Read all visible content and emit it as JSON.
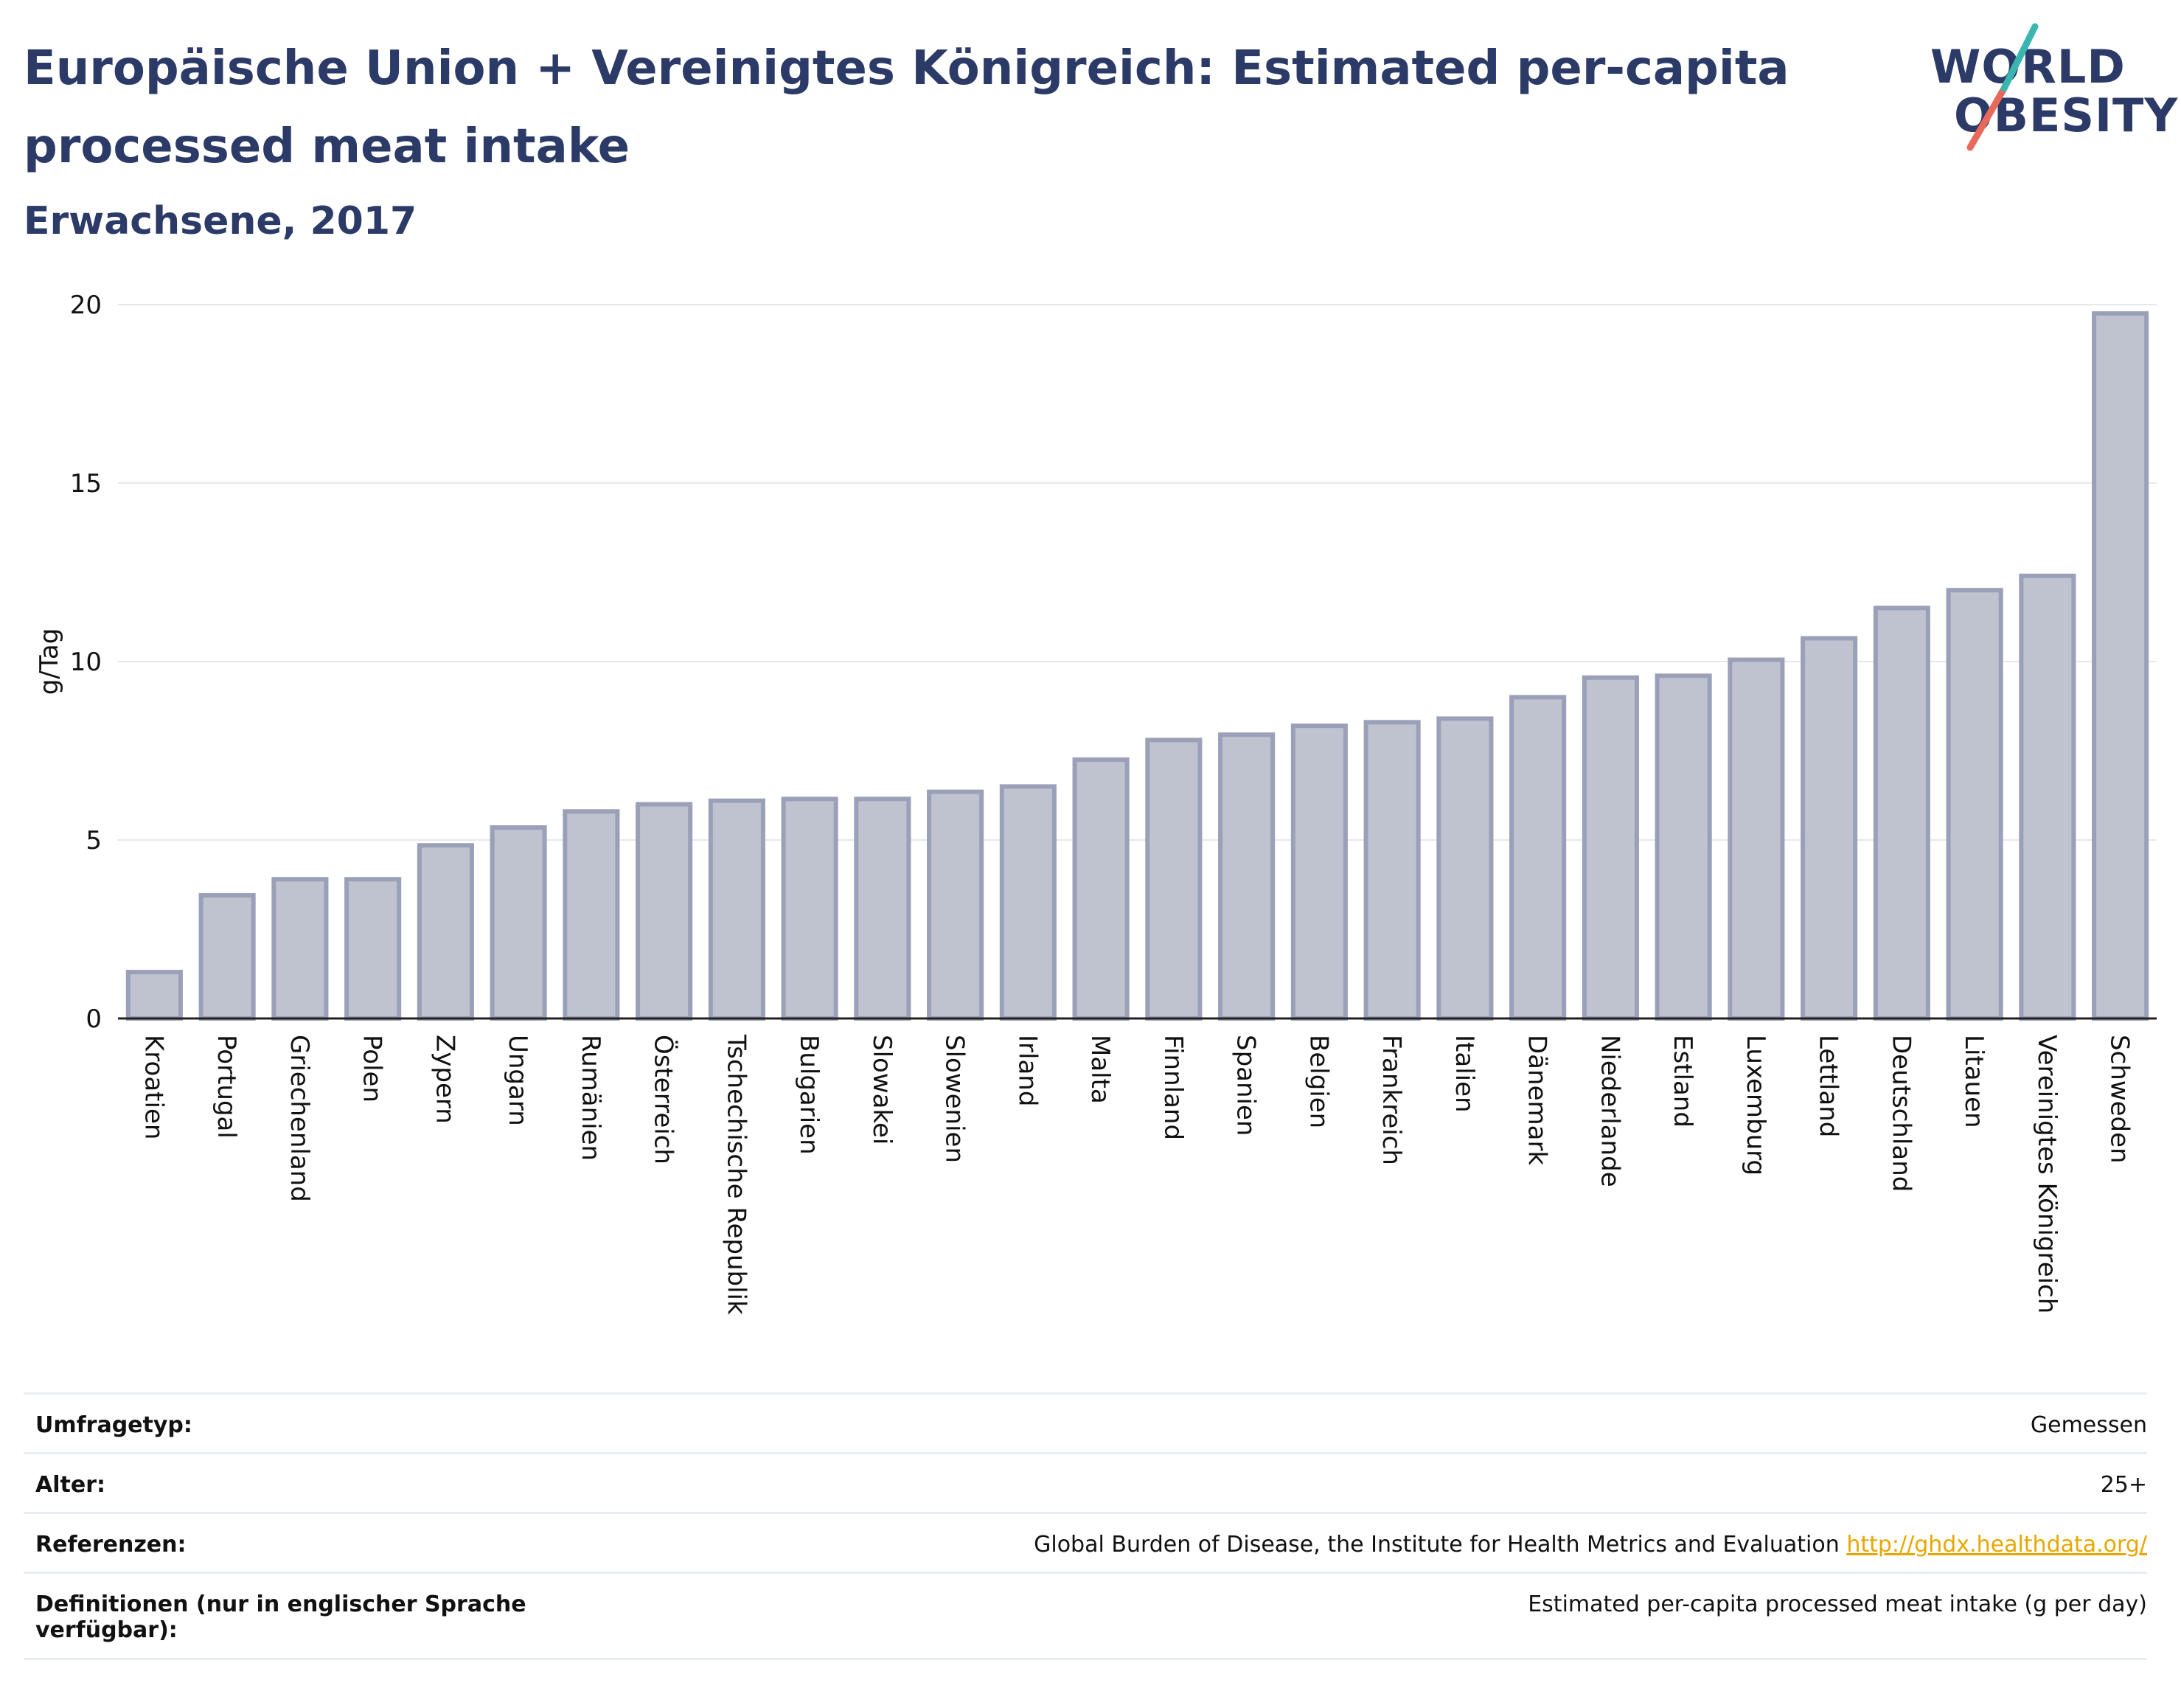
{
  "header": {
    "title": "Europäische Union + Vereinigtes Königreich: Estimated per-capita processed meat intake",
    "subtitle": "Erwachsene, 2017"
  },
  "logo": {
    "line1": "WORLD",
    "line2": "OBESITY",
    "colors": {
      "text": "#2b3a67",
      "accent_teal": "#3ab6b0",
      "accent_red": "#e8685a"
    }
  },
  "chart_data": {
    "type": "bar",
    "ylabel": "g/Tag",
    "xlabel": "",
    "ylim": [
      0,
      20
    ],
    "yticks": [
      0,
      5,
      10,
      15,
      20
    ],
    "grid": true,
    "bar_fill": "#bfc2cf",
    "bar_stroke": "#9aa0b8",
    "categories": [
      "Kroatien",
      "Portugal",
      "Griechenland",
      "Polen",
      "Zypern",
      "Ungarn",
      "Rumänien",
      "Österreich",
      "Tschechische Republik",
      "Bulgarien",
      "Slowakei",
      "Slowenien",
      "Irland",
      "Malta",
      "Finnland",
      "Spanien",
      "Belgien",
      "Frankreich",
      "Italien",
      "Dänemark",
      "Niederlande",
      "Estland",
      "Luxemburg",
      "Lettland",
      "Deutschland",
      "Litauen",
      "Vereinigtes Königreich",
      "Schweden"
    ],
    "values": [
      1.3,
      3.45,
      3.9,
      3.9,
      4.85,
      5.35,
      5.8,
      6.0,
      6.1,
      6.15,
      6.15,
      6.35,
      6.5,
      7.25,
      7.8,
      7.95,
      8.2,
      8.3,
      8.4,
      9.0,
      9.55,
      9.6,
      10.05,
      10.65,
      11.5,
      12.0,
      12.4,
      19.75
    ]
  },
  "info": {
    "survey_label": "Umfragetyp:",
    "survey_value": "Gemessen",
    "age_label": "Alter:",
    "age_value": "25+",
    "ref_label": "Referenzen:",
    "ref_value": "Global Burden of Disease, the Institute for Health Metrics and Evaluation",
    "ref_link": "http://ghdx.healthdata.org/",
    "def_label": "Definitionen (nur in englischer Sprache verfügbar):",
    "def_value": "Estimated per-capita processed meat intake (g per day)"
  }
}
